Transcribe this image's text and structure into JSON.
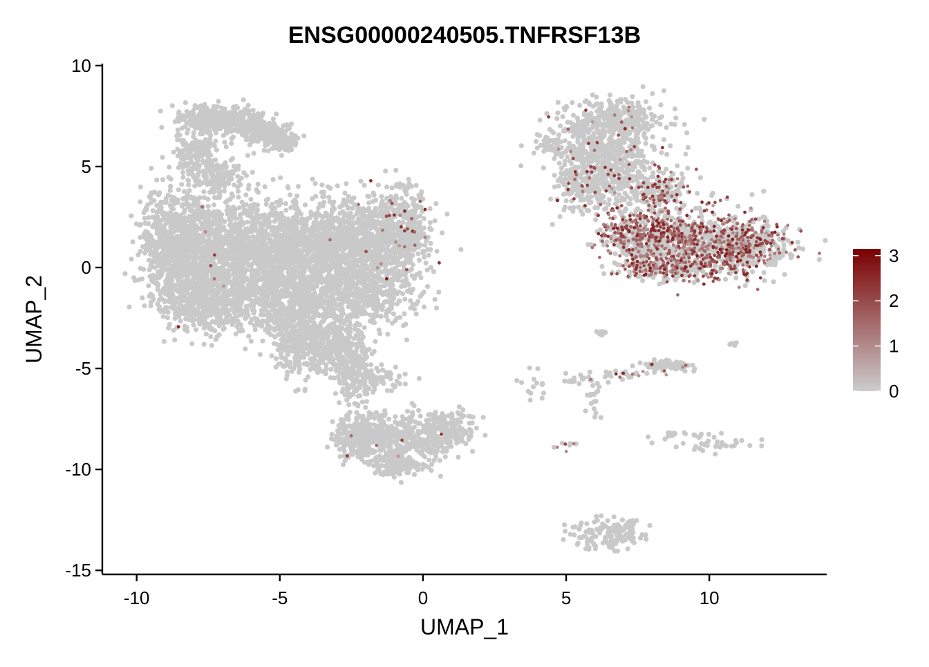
{
  "chart_data": {
    "type": "scatter",
    "title": "ENSG00000240505.TNFRSF13B",
    "xlabel": "UMAP_1",
    "ylabel": "UMAP_2",
    "xlim": [
      -11.2,
      14.1
    ],
    "ylim": [
      -15.2,
      10.1
    ],
    "x_ticks": [
      -10,
      -5,
      0,
      5,
      10
    ],
    "x_tick_labels": [
      "-10",
      "-5",
      "0",
      "5",
      "10"
    ],
    "y_ticks": [
      -15,
      -10,
      -5,
      0,
      5,
      10
    ],
    "y_tick_labels": [
      "-15",
      "-10",
      "-5",
      "0",
      "5",
      "10"
    ],
    "grid": false,
    "legend": {
      "placement": "right",
      "type": "colorbar",
      "min": 0,
      "max": 3.15,
      "ticks": [
        0,
        1,
        2,
        3
      ],
      "tick_labels": [
        "0",
        "1",
        "2",
        "3"
      ],
      "low_color": "#cccccc",
      "high_color": "#7a0000"
    },
    "point_color_base": "#c9c9c9",
    "clusters": [
      {
        "cx": -7.6,
        "cy": 7.4,
        "sx": 0.45,
        "sy": 0.3,
        "n": 260,
        "expr": 0.0
      },
      {
        "cx": -6.4,
        "cy": 7.2,
        "sx": 0.5,
        "sy": 0.35,
        "n": 200,
        "expr": 0.0
      },
      {
        "cx": -5.4,
        "cy": 6.6,
        "sx": 0.45,
        "sy": 0.28,
        "n": 160,
        "expr": 0.0
      },
      {
        "cx": -4.9,
        "cy": 6.2,
        "sx": 0.25,
        "sy": 0.2,
        "n": 80,
        "expr": 0.0
      },
      {
        "cx": -8.0,
        "cy": 5.8,
        "sx": 0.35,
        "sy": 0.45,
        "n": 140,
        "expr": 0.0
      },
      {
        "cx": -7.2,
        "cy": 4.6,
        "sx": 0.5,
        "sy": 0.4,
        "n": 160,
        "expr": 0.0
      },
      {
        "cx": -8.6,
        "cy": 1.2,
        "sx": 0.6,
        "sy": 1.3,
        "n": 700,
        "expr": 0.0
      },
      {
        "cx": -7.2,
        "cy": 0.6,
        "sx": 0.9,
        "sy": 1.5,
        "n": 800,
        "expr": 0.01
      },
      {
        "cx": -5.4,
        "cy": 0.8,
        "sx": 0.9,
        "sy": 1.3,
        "n": 700,
        "expr": 0.0
      },
      {
        "cx": -3.6,
        "cy": 1.0,
        "sx": 0.9,
        "sy": 1.2,
        "n": 650,
        "expr": 0.0
      },
      {
        "cx": -1.8,
        "cy": 1.2,
        "sx": 0.8,
        "sy": 1.2,
        "n": 600,
        "expr": 0.01
      },
      {
        "cx": -0.6,
        "cy": 1.8,
        "sx": 0.45,
        "sy": 1.0,
        "n": 300,
        "expr": 0.06
      },
      {
        "cx": -7.5,
        "cy": -1.6,
        "sx": 0.9,
        "sy": 0.8,
        "n": 500,
        "expr": 0.0
      },
      {
        "cx": -4.8,
        "cy": -1.6,
        "sx": 0.9,
        "sy": 0.8,
        "n": 450,
        "expr": 0.0
      },
      {
        "cx": -2.2,
        "cy": -1.4,
        "sx": 0.9,
        "sy": 0.9,
        "n": 420,
        "expr": 0.0
      },
      {
        "cx": -4.4,
        "cy": -3.6,
        "sx": 0.45,
        "sy": 0.8,
        "n": 280,
        "expr": 0.0
      },
      {
        "cx": -3.2,
        "cy": -3.9,
        "sx": 0.55,
        "sy": 0.8,
        "n": 300,
        "expr": 0.0
      },
      {
        "cx": -2.4,
        "cy": -5.4,
        "sx": 0.35,
        "sy": 0.8,
        "n": 160,
        "expr": 0.0
      },
      {
        "cx": -1.5,
        "cy": -5.6,
        "sx": 0.5,
        "sy": 0.3,
        "n": 60,
        "expr": 0.0
      },
      {
        "cx": -2.2,
        "cy": -8.4,
        "sx": 0.45,
        "sy": 0.55,
        "n": 220,
        "expr": 0.01
      },
      {
        "cx": -1.0,
        "cy": -8.6,
        "sx": 0.75,
        "sy": 0.6,
        "n": 320,
        "expr": 0.01
      },
      {
        "cx": 0.6,
        "cy": -8.1,
        "sx": 0.6,
        "sy": 0.5,
        "n": 240,
        "expr": 0.01
      },
      {
        "cx": -0.8,
        "cy": -9.8,
        "sx": 0.5,
        "sy": 0.25,
        "n": 120,
        "expr": 0.0
      },
      {
        "cx": 6.6,
        "cy": 7.3,
        "sx": 0.9,
        "sy": 0.5,
        "n": 320,
        "expr": 0.04
      },
      {
        "cx": 6.2,
        "cy": 5.9,
        "sx": 0.9,
        "sy": 0.5,
        "n": 280,
        "expr": 0.05
      },
      {
        "cx": 5.6,
        "cy": 4.2,
        "sx": 0.5,
        "sy": 0.8,
        "n": 220,
        "expr": 0.08
      },
      {
        "cx": 6.9,
        "cy": 4.4,
        "sx": 0.6,
        "sy": 0.7,
        "n": 200,
        "expr": 0.12
      },
      {
        "cx": 8.3,
        "cy": 3.8,
        "sx": 0.5,
        "sy": 0.5,
        "n": 160,
        "expr": 0.35
      },
      {
        "cx": 7.4,
        "cy": 1.6,
        "sx": 0.6,
        "sy": 0.7,
        "n": 350,
        "expr": 0.45
      },
      {
        "cx": 9.2,
        "cy": 1.3,
        "sx": 0.9,
        "sy": 0.8,
        "n": 550,
        "expr": 0.5
      },
      {
        "cx": 11.2,
        "cy": 1.1,
        "sx": 0.8,
        "sy": 0.7,
        "n": 500,
        "expr": 0.45
      },
      {
        "cx": 8.6,
        "cy": 0.0,
        "sx": 1.0,
        "sy": 0.3,
        "n": 250,
        "expr": 0.45
      },
      {
        "cx": 4.4,
        "cy": 6.1,
        "sx": 0.25,
        "sy": 0.25,
        "n": 30,
        "expr": 0.0
      },
      {
        "cx": 8.4,
        "cy": -4.9,
        "sx": 0.45,
        "sy": 0.12,
        "n": 80,
        "expr": 0.05
      },
      {
        "cx": 6.8,
        "cy": -5.3,
        "sx": 0.6,
        "sy": 0.15,
        "n": 30,
        "expr": 0.25
      },
      {
        "cx": 6.2,
        "cy": -3.2,
        "sx": 0.12,
        "sy": 0.08,
        "n": 10,
        "expr": 0.0
      },
      {
        "cx": 5.4,
        "cy": -5.6,
        "sx": 0.25,
        "sy": 0.1,
        "n": 12,
        "expr": 0.0
      },
      {
        "cx": 6.0,
        "cy": -6.6,
        "sx": 0.12,
        "sy": 0.7,
        "n": 20,
        "expr": 0.1
      },
      {
        "cx": 3.9,
        "cy": -5.9,
        "sx": 0.25,
        "sy": 0.4,
        "n": 14,
        "expr": 0.0
      },
      {
        "cx": 9.2,
        "cy": -8.3,
        "sx": 0.7,
        "sy": 0.15,
        "n": 22,
        "expr": 0.0
      },
      {
        "cx": 10.0,
        "cy": -8.8,
        "sx": 0.7,
        "sy": 0.18,
        "n": 26,
        "expr": 0.0
      },
      {
        "cx": 5.0,
        "cy": -8.8,
        "sx": 0.25,
        "sy": 0.15,
        "n": 10,
        "expr": 0.3
      },
      {
        "cx": 10.9,
        "cy": -3.8,
        "sx": 0.1,
        "sy": 0.08,
        "n": 6,
        "expr": 0.0
      },
      {
        "cx": 6.4,
        "cy": -13.2,
        "sx": 0.7,
        "sy": 0.35,
        "n": 140,
        "expr": 0.0
      }
    ]
  }
}
